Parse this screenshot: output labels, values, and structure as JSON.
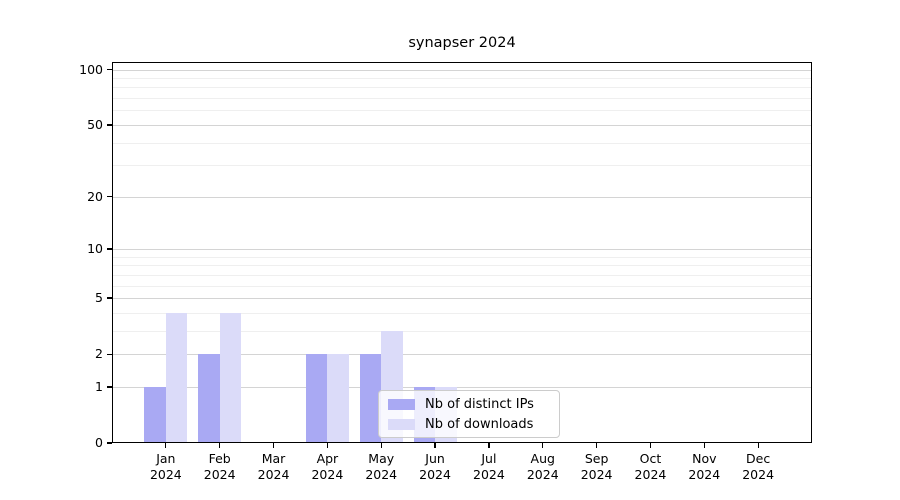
{
  "chart_data": {
    "type": "bar",
    "title": "synapser 2024",
    "categories": [
      "Jan 2024",
      "Feb 2024",
      "Mar 2024",
      "Apr 2024",
      "May 2024",
      "Jun 2024",
      "Jul 2024",
      "Aug 2024",
      "Sep 2024",
      "Oct 2024",
      "Nov 2024",
      "Dec 2024"
    ],
    "series": [
      {
        "name": "Nb of distinct IPs",
        "color": "#a9a9f3",
        "values": [
          1,
          2,
          0,
          2,
          2,
          1,
          0,
          0,
          0,
          0,
          0,
          0
        ]
      },
      {
        "name": "Nb of downloads",
        "color": "#dbdbf9",
        "values": [
          4,
          4,
          0,
          2,
          3,
          1,
          0,
          0,
          0,
          0,
          0,
          0
        ]
      }
    ],
    "xlabel": "",
    "ylabel": "",
    "y_scale": "log1p",
    "y_axis_range": [
      0,
      110
    ],
    "y_ticks": [
      0,
      1,
      2,
      5,
      10,
      20,
      50,
      100
    ],
    "y_minor_gridlines": [
      3,
      4,
      6,
      7,
      8,
      9,
      30,
      40,
      60,
      70,
      80,
      90
    ],
    "grid": true,
    "legend_position": "inside-bottom-center",
    "colors": {
      "frame": "#000000",
      "major_gridline": "#d4d4d4",
      "minor_gridline": "#efefef",
      "legend_border": "#cccccc",
      "text": "#000000"
    }
  }
}
